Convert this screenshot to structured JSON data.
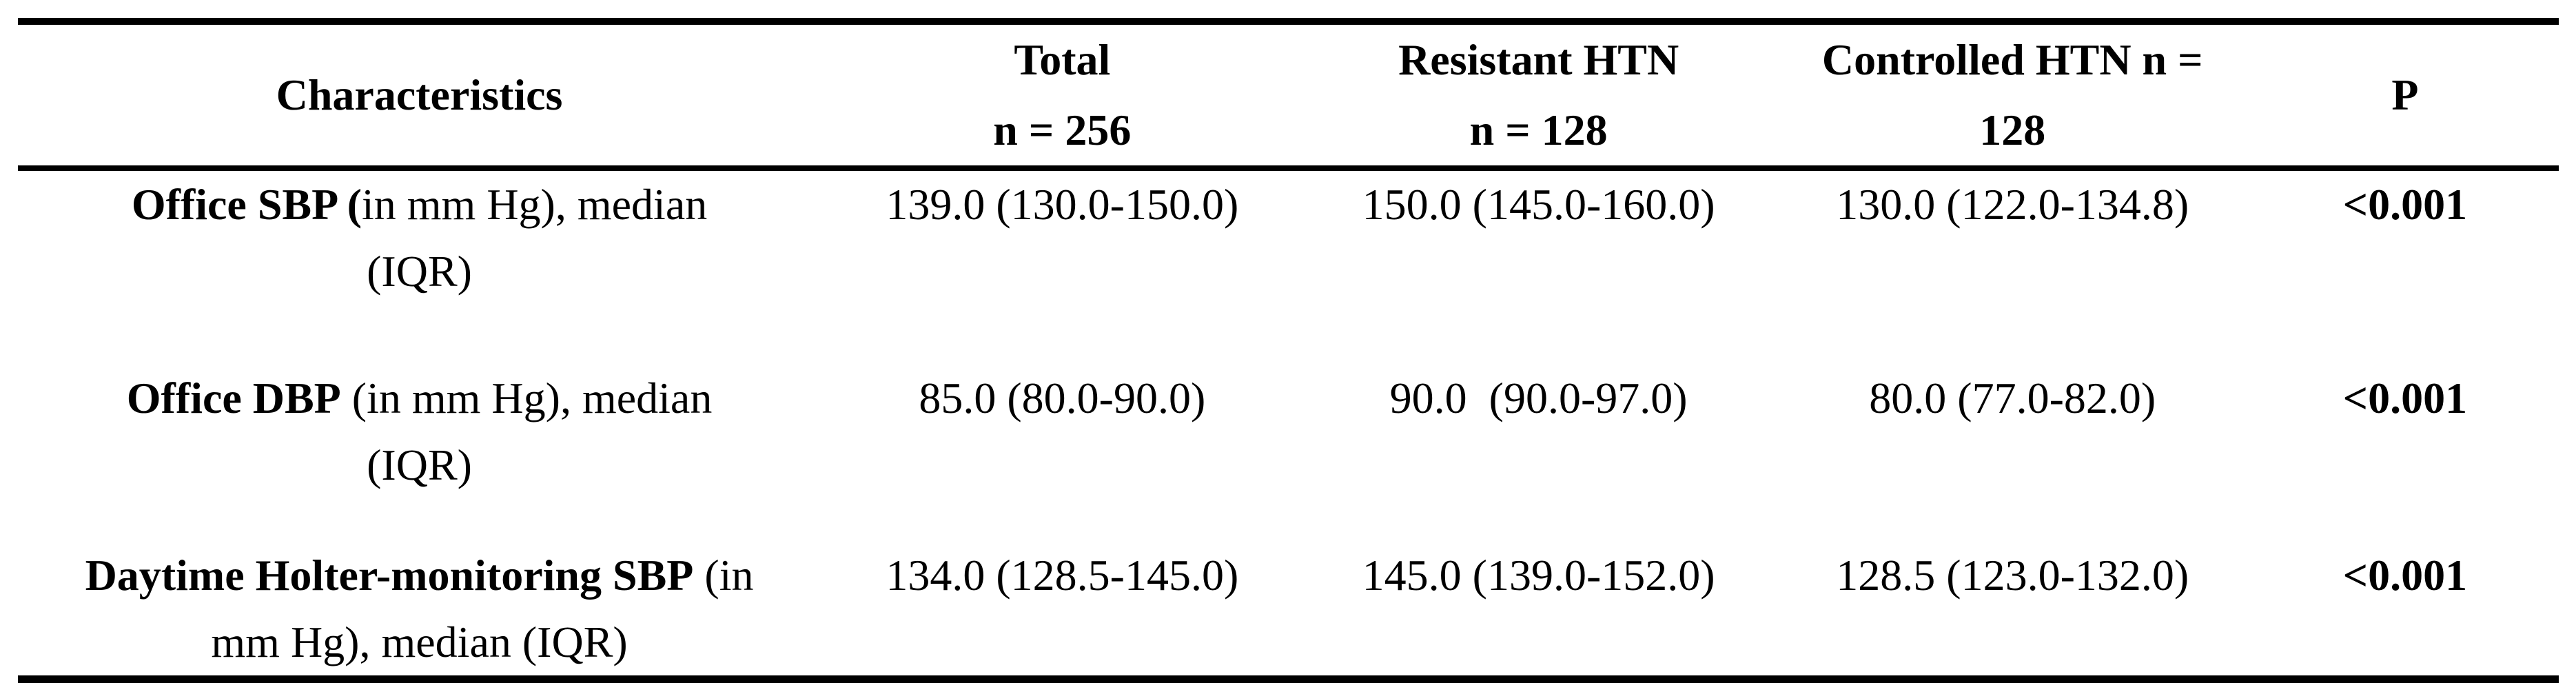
{
  "table": {
    "header": [
      {
        "line1": "Characteristics",
        "line2": ""
      },
      {
        "line1": "Total",
        "line2": "n = 256"
      },
      {
        "line1": "Resistant HTN",
        "line2": "n = 128"
      },
      {
        "line1": "Controlled HTN n =",
        "line2": "128"
      },
      {
        "line1": "P",
        "line2": ""
      }
    ],
    "rows": [
      {
        "characteristic": {
          "bold": "Office SBP (",
          "rest_line1": "in mm Hg), median",
          "line2": "(IQR)",
          "full": "Office SBP (in mm Hg), median (IQR)"
        },
        "total": "139.0 (130.0-150.0)",
        "resistant_htn": "150.0 (145.0-160.0)",
        "controlled_htn": "130.0 (122.0-134.8)",
        "p": "<0.001"
      },
      {
        "characteristic": {
          "bold": "Office DBP",
          "rest_line1": " (in mm Hg), median",
          "line2": "(IQR)",
          "full": "Office DBP (in mm Hg), median (IQR)"
        },
        "total": "85.0 (80.0-90.0)",
        "resistant_htn": "90.0  (90.0-97.0)",
        "controlled_htn": "80.0 (77.0-82.0)",
        "p": "<0.001"
      },
      {
        "characteristic": {
          "bold": "Daytime Holter-monitoring SBP",
          "rest_line1": " (in",
          "line2": "mm Hg), median (IQR)",
          "full": "Daytime Holter-monitoring SBP (in mm Hg), median (IQR)"
        },
        "total": "134.0 (128.5-145.0)",
        "resistant_htn": "145.0 (139.0-152.0)",
        "controlled_htn": "128.5 (123.0-132.0)",
        "p": "<0.001"
      }
    ],
    "colors": {
      "text": "#000000",
      "background": "#ffffff",
      "rule": "#000000"
    }
  }
}
